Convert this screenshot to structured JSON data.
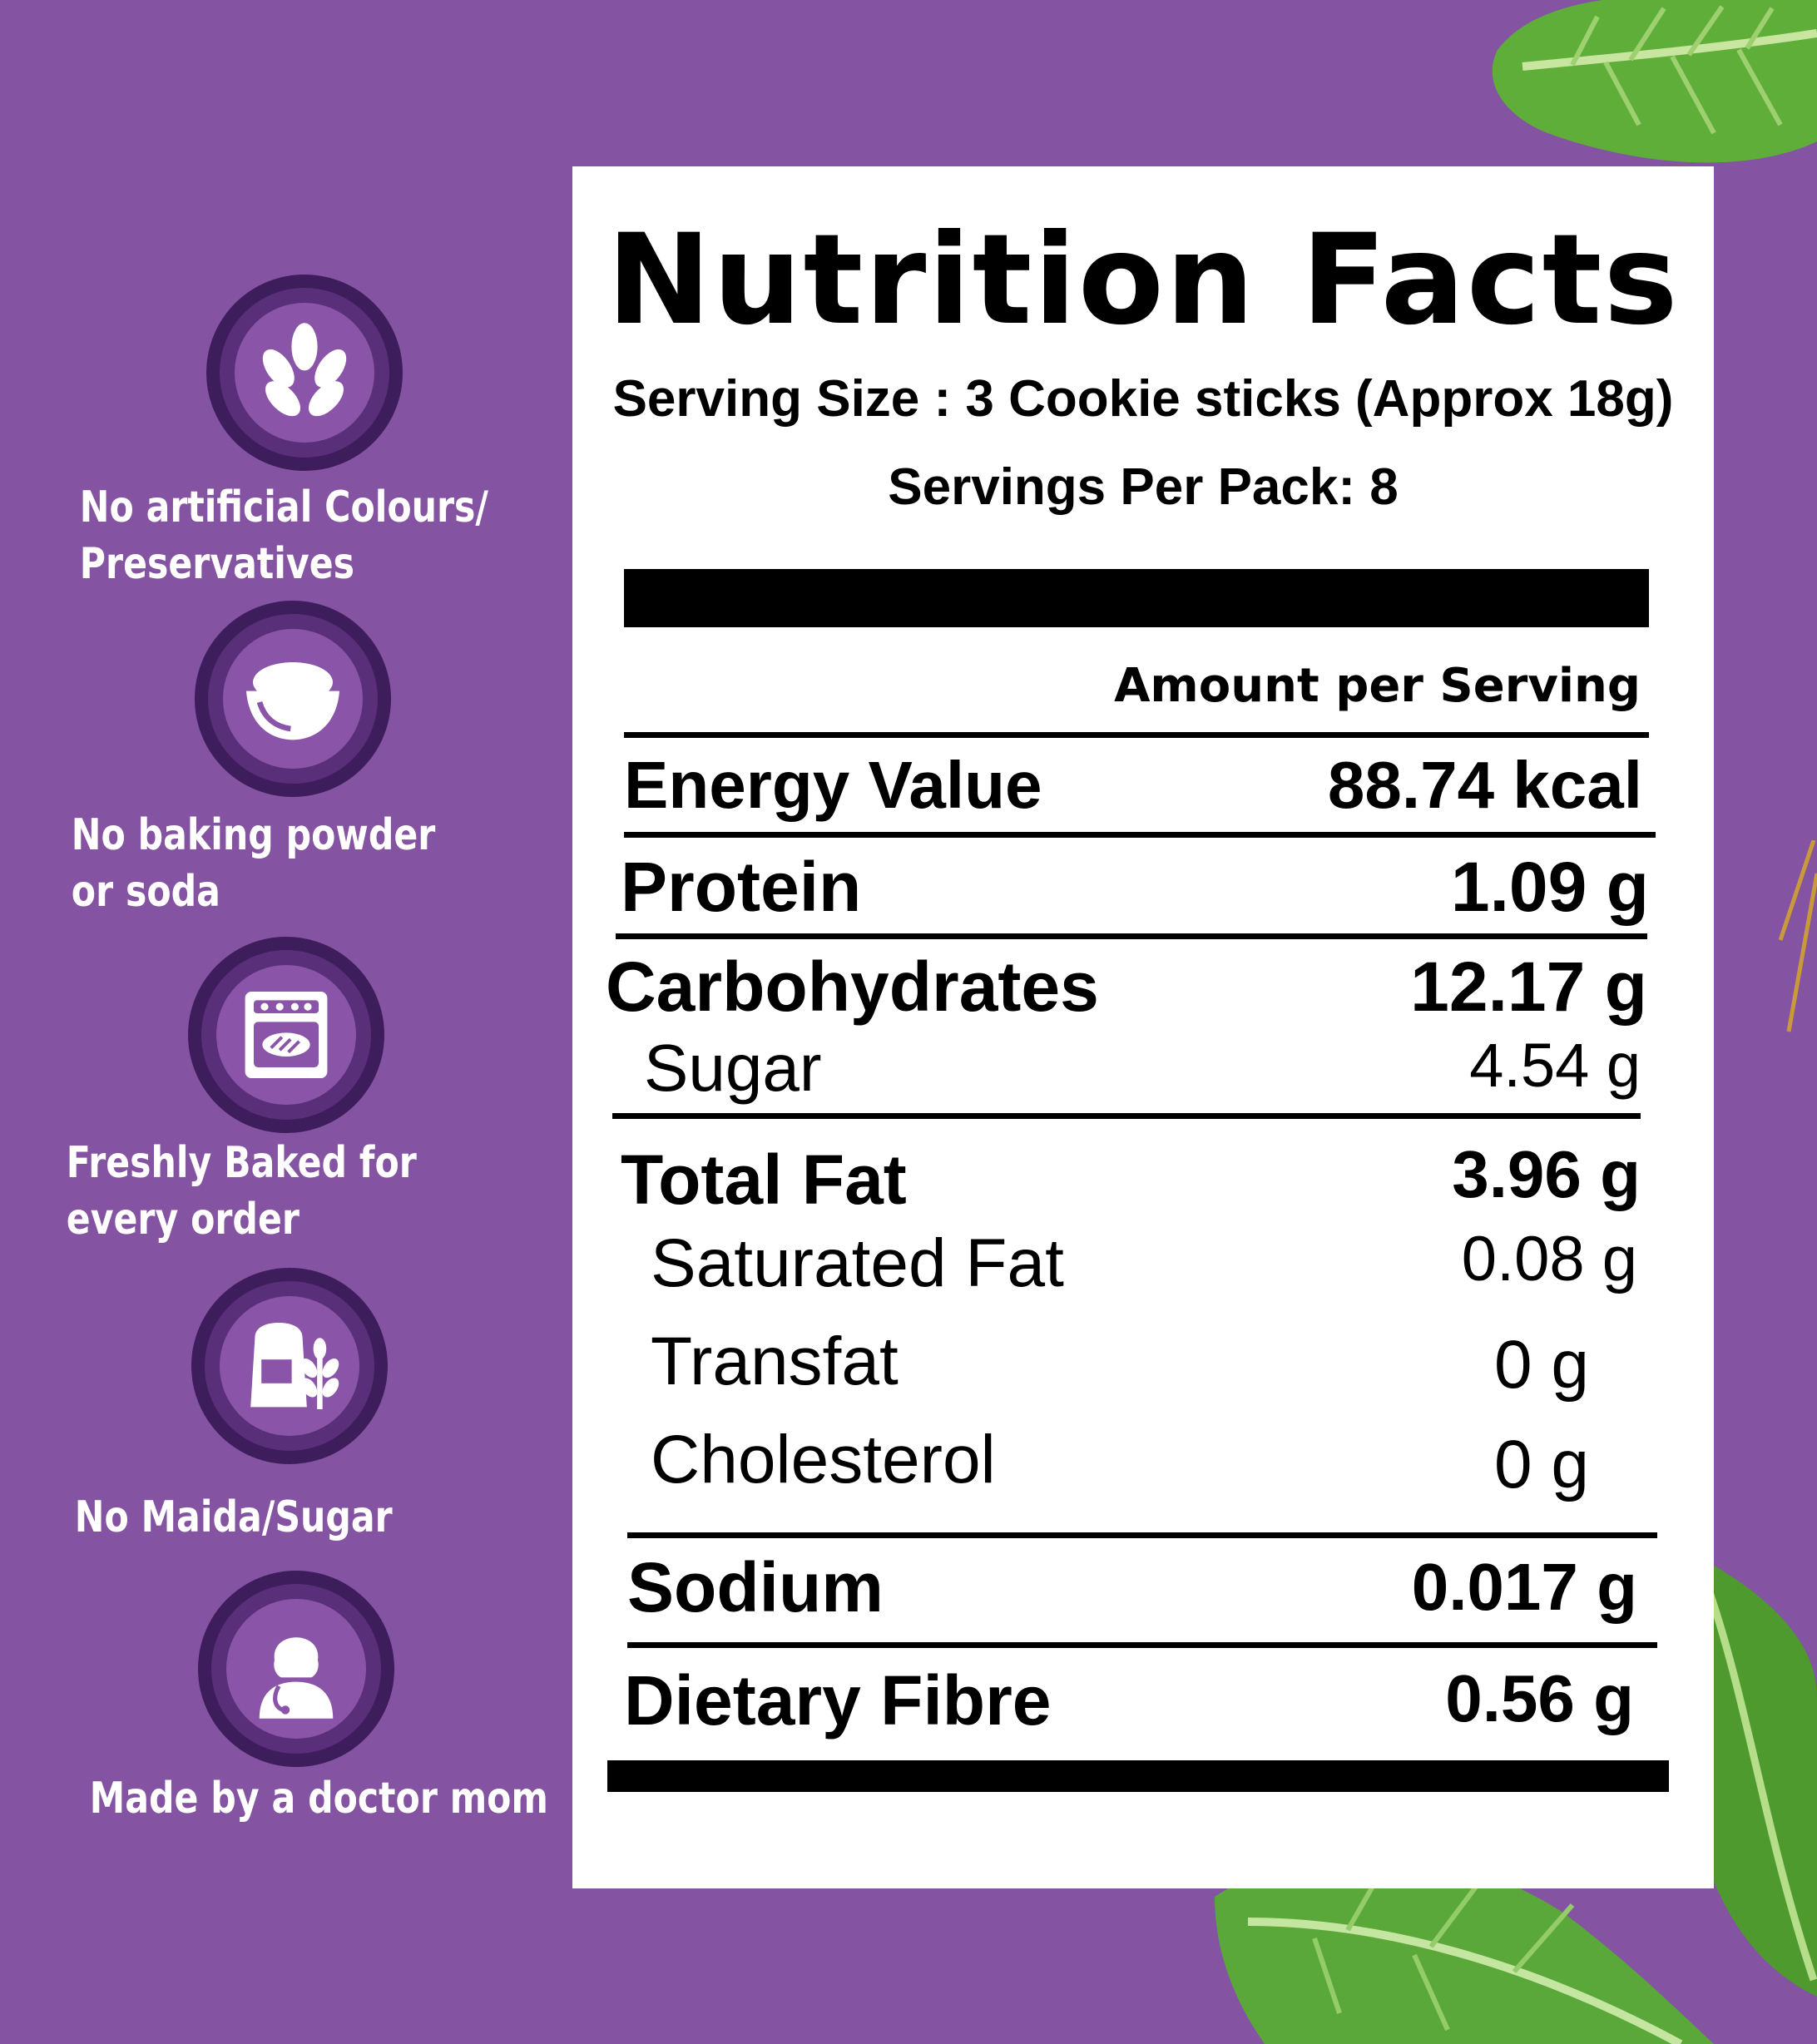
{
  "features": [
    {
      "icon": "wheat-icon",
      "line1": "No artificial Colours/",
      "line2": "Preservatives"
    },
    {
      "icon": "bowl-icon",
      "line1": "No baking powder",
      "line2": "or soda"
    },
    {
      "icon": "oven-icon",
      "line1": "Freshly Baked for",
      "line2": "every order"
    },
    {
      "icon": "flour-bag-icon",
      "line1": "No Maida/Sugar",
      "line2": ""
    },
    {
      "icon": "doctor-icon",
      "line1": "Made by a doctor mom",
      "line2": ""
    }
  ],
  "nutrition": {
    "title": "Nutrition Facts",
    "serving_size": "Serving Size : 3 Cookie sticks (Approx 18g)",
    "servings_per_pack": "Servings Per Pack: 8",
    "amount_header": "Amount per Serving",
    "rows": [
      {
        "label": "Energy Value",
        "value": "88.74 kcal"
      },
      {
        "label": "Protein",
        "value": "1.09 g"
      },
      {
        "label": "Carbohydrates",
        "value": "12.17 g"
      },
      {
        "label": "Sugar",
        "value": "4.54 g"
      },
      {
        "label": "Total Fat",
        "value": "3.96 g"
      },
      {
        "label": "Saturated Fat",
        "value": "0.08 g"
      },
      {
        "label": "Transfat",
        "value": "0 g"
      },
      {
        "label": "Cholesterol",
        "value": "0 g"
      },
      {
        "label": "Sodium",
        "value": "0.017 g"
      },
      {
        "label": "Dietary Fibre",
        "value": "0.56 g"
      }
    ]
  },
  "colors": {
    "background": "#8453a1",
    "panel": "#ffffff",
    "ring": "#3e1d5c",
    "leaf": "#4e9a2e"
  }
}
